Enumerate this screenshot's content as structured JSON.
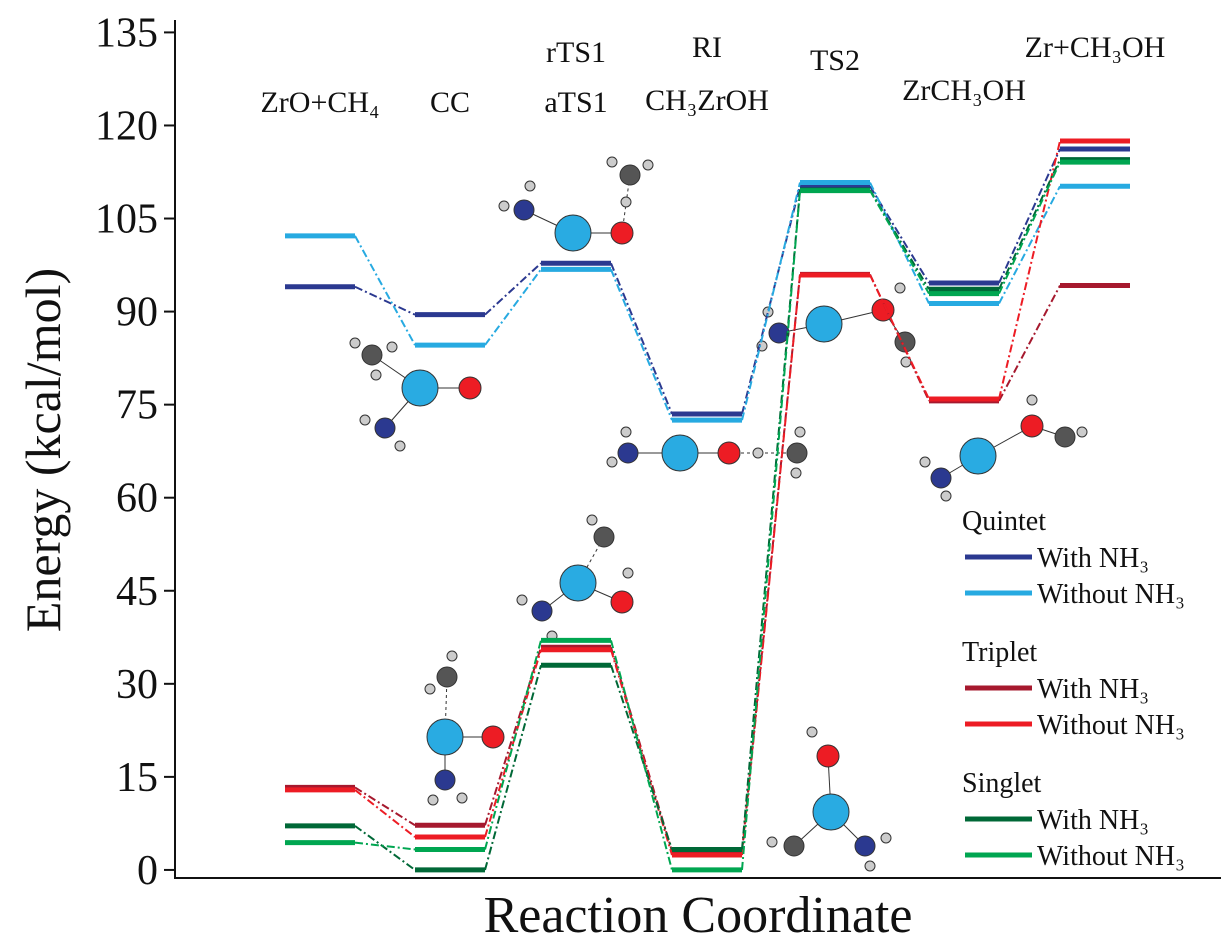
{
  "chart_data": {
    "type": "energy-profile",
    "y_label": "Energy (kcal/mol)",
    "x_label": "Reaction Coordinate",
    "categories": [
      [
        "ZrO+CH₄"
      ],
      [
        "CC"
      ],
      [
        "rTS1",
        "aTS1"
      ],
      [
        "RI",
        "CH₃ZrOH"
      ],
      [
        "TS2"
      ],
      [
        "ZrCH₃OH"
      ],
      [
        "Zr+CH₃OH"
      ]
    ],
    "ylim": [
      -1.3,
      137
    ],
    "yticks": [
      0,
      15,
      30,
      45,
      60,
      75,
      90,
      105,
      120,
      135
    ],
    "series_groups": [
      {
        "name": "Quintet",
        "series": [
          {
            "name": "With NH₃",
            "color": "#2b3990",
            "values": [
              94,
              89.5,
              97.8,
              73.5,
              110.2,
              94.6,
              116.2
            ]
          },
          {
            "name": "Without NH₃",
            "color": "#27aae1",
            "values": [
              102.2,
              84.6,
              96.8,
              72.5,
              110.8,
              91.3,
              110.2
            ]
          }
        ]
      },
      {
        "name": "Triplet",
        "series": [
          {
            "name": "With NH₃",
            "color": "#a6192e",
            "values": [
              13.3,
              7.2,
              35.9,
              3,
              96,
              75.6,
              94.2
            ]
          },
          {
            "name": "Without NH₃",
            "color": "#ed1c24",
            "values": [
              12.9,
              5.3,
              35.5,
              2.4,
              95.9,
              75.9,
              117.5
            ]
          }
        ]
      },
      {
        "name": "Singlet",
        "series": [
          {
            "name": "With NH₃",
            "color": "#006837",
            "values": [
              7.1,
              0,
              33,
              3.3,
              109.6,
              93.6,
              114.5
            ]
          },
          {
            "name": "Without NH₃",
            "color": "#00a651",
            "values": [
              4.4,
              3.3,
              37,
              0,
              109.5,
              92.9,
              114.1
            ]
          }
        ]
      }
    ]
  }
}
